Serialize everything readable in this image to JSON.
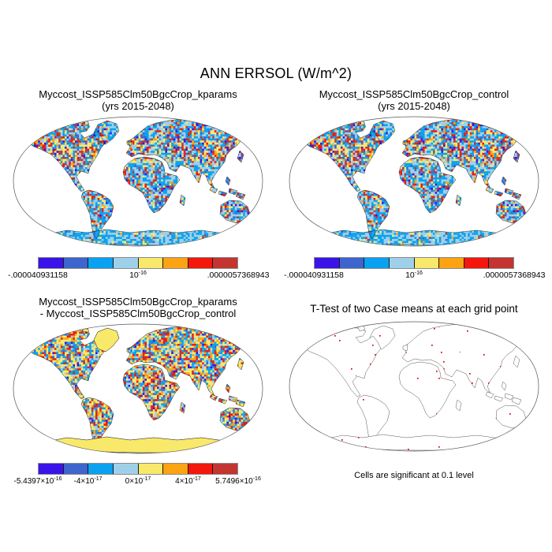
{
  "figure": {
    "title": "ANN ERRSOL (W/m^2)"
  },
  "palette": [
    "#3a13e8",
    "#3d65cd",
    "#0aa2f0",
    "#9fd0ea",
    "#f9e96b",
    "#fba313",
    "#f3170c",
    "#c43430"
  ],
  "chart_data": [
    {
      "type": "map",
      "panel": "top-left",
      "projection": "robinson",
      "title": "Myccost_ISSP585Clm50BgcCrop_kparams",
      "subtitle": "(yrs 2015-2048)",
      "colorbar": {
        "colors": [
          "#3a13e8",
          "#3d65cd",
          "#0aa2f0",
          "#9fd0ea",
          "#f9e96b",
          "#fba313",
          "#f3170c",
          "#c43430"
        ],
        "labels": [
          {
            "base": "-.000040931158",
            "exp": "",
            "pos": 0
          },
          {
            "base": "10",
            "exp": "-16",
            "pos": 50
          },
          {
            "base": ".0000057368943",
            "exp": "",
            "pos": 100
          }
        ]
      }
    },
    {
      "type": "map",
      "panel": "top-right",
      "projection": "robinson",
      "title": "Myccost_ISSP585Clm50BgcCrop_control",
      "subtitle": "(yrs 2015-2048)",
      "colorbar": {
        "colors": [
          "#3a13e8",
          "#3d65cd",
          "#0aa2f0",
          "#9fd0ea",
          "#f9e96b",
          "#fba313",
          "#f3170c",
          "#c43430"
        ],
        "labels": [
          {
            "base": "-.000040931158",
            "exp": "",
            "pos": 0
          },
          {
            "base": "10",
            "exp": "-16",
            "pos": 50
          },
          {
            "base": ".0000057368943",
            "exp": "",
            "pos": 100
          }
        ]
      }
    },
    {
      "type": "map_difference",
      "panel": "bottom-left",
      "projection": "robinson",
      "title_line1": "Myccost_ISSP585Clm50BgcCrop_kparams",
      "title_line2": "- Myccost_ISSP585Clm50BgcCrop_control",
      "colorbar": {
        "colors": [
          "#3a13e8",
          "#3d65cd",
          "#0aa2f0",
          "#9fd0ea",
          "#f9e96b",
          "#fba313",
          "#f3170c",
          "#c43430"
        ],
        "labels": [
          {
            "base": "-5.4397×10",
            "exp": "-16",
            "pos": 0
          },
          {
            "base": "-4×10",
            "exp": "-17",
            "pos": 25
          },
          {
            "base": "0×10",
            "exp": "-17",
            "pos": 50
          },
          {
            "base": "4×10",
            "exp": "-17",
            "pos": 75
          },
          {
            "base": "5.7496×10",
            "exp": "-16",
            "pos": 100
          }
        ]
      }
    },
    {
      "type": "map_significance",
      "panel": "bottom-right",
      "projection": "robinson",
      "title": "T-Test of two Case means at each grid point",
      "caption": "Cells are significant at 0.1 level",
      "dot_color": "#e00000"
    }
  ]
}
